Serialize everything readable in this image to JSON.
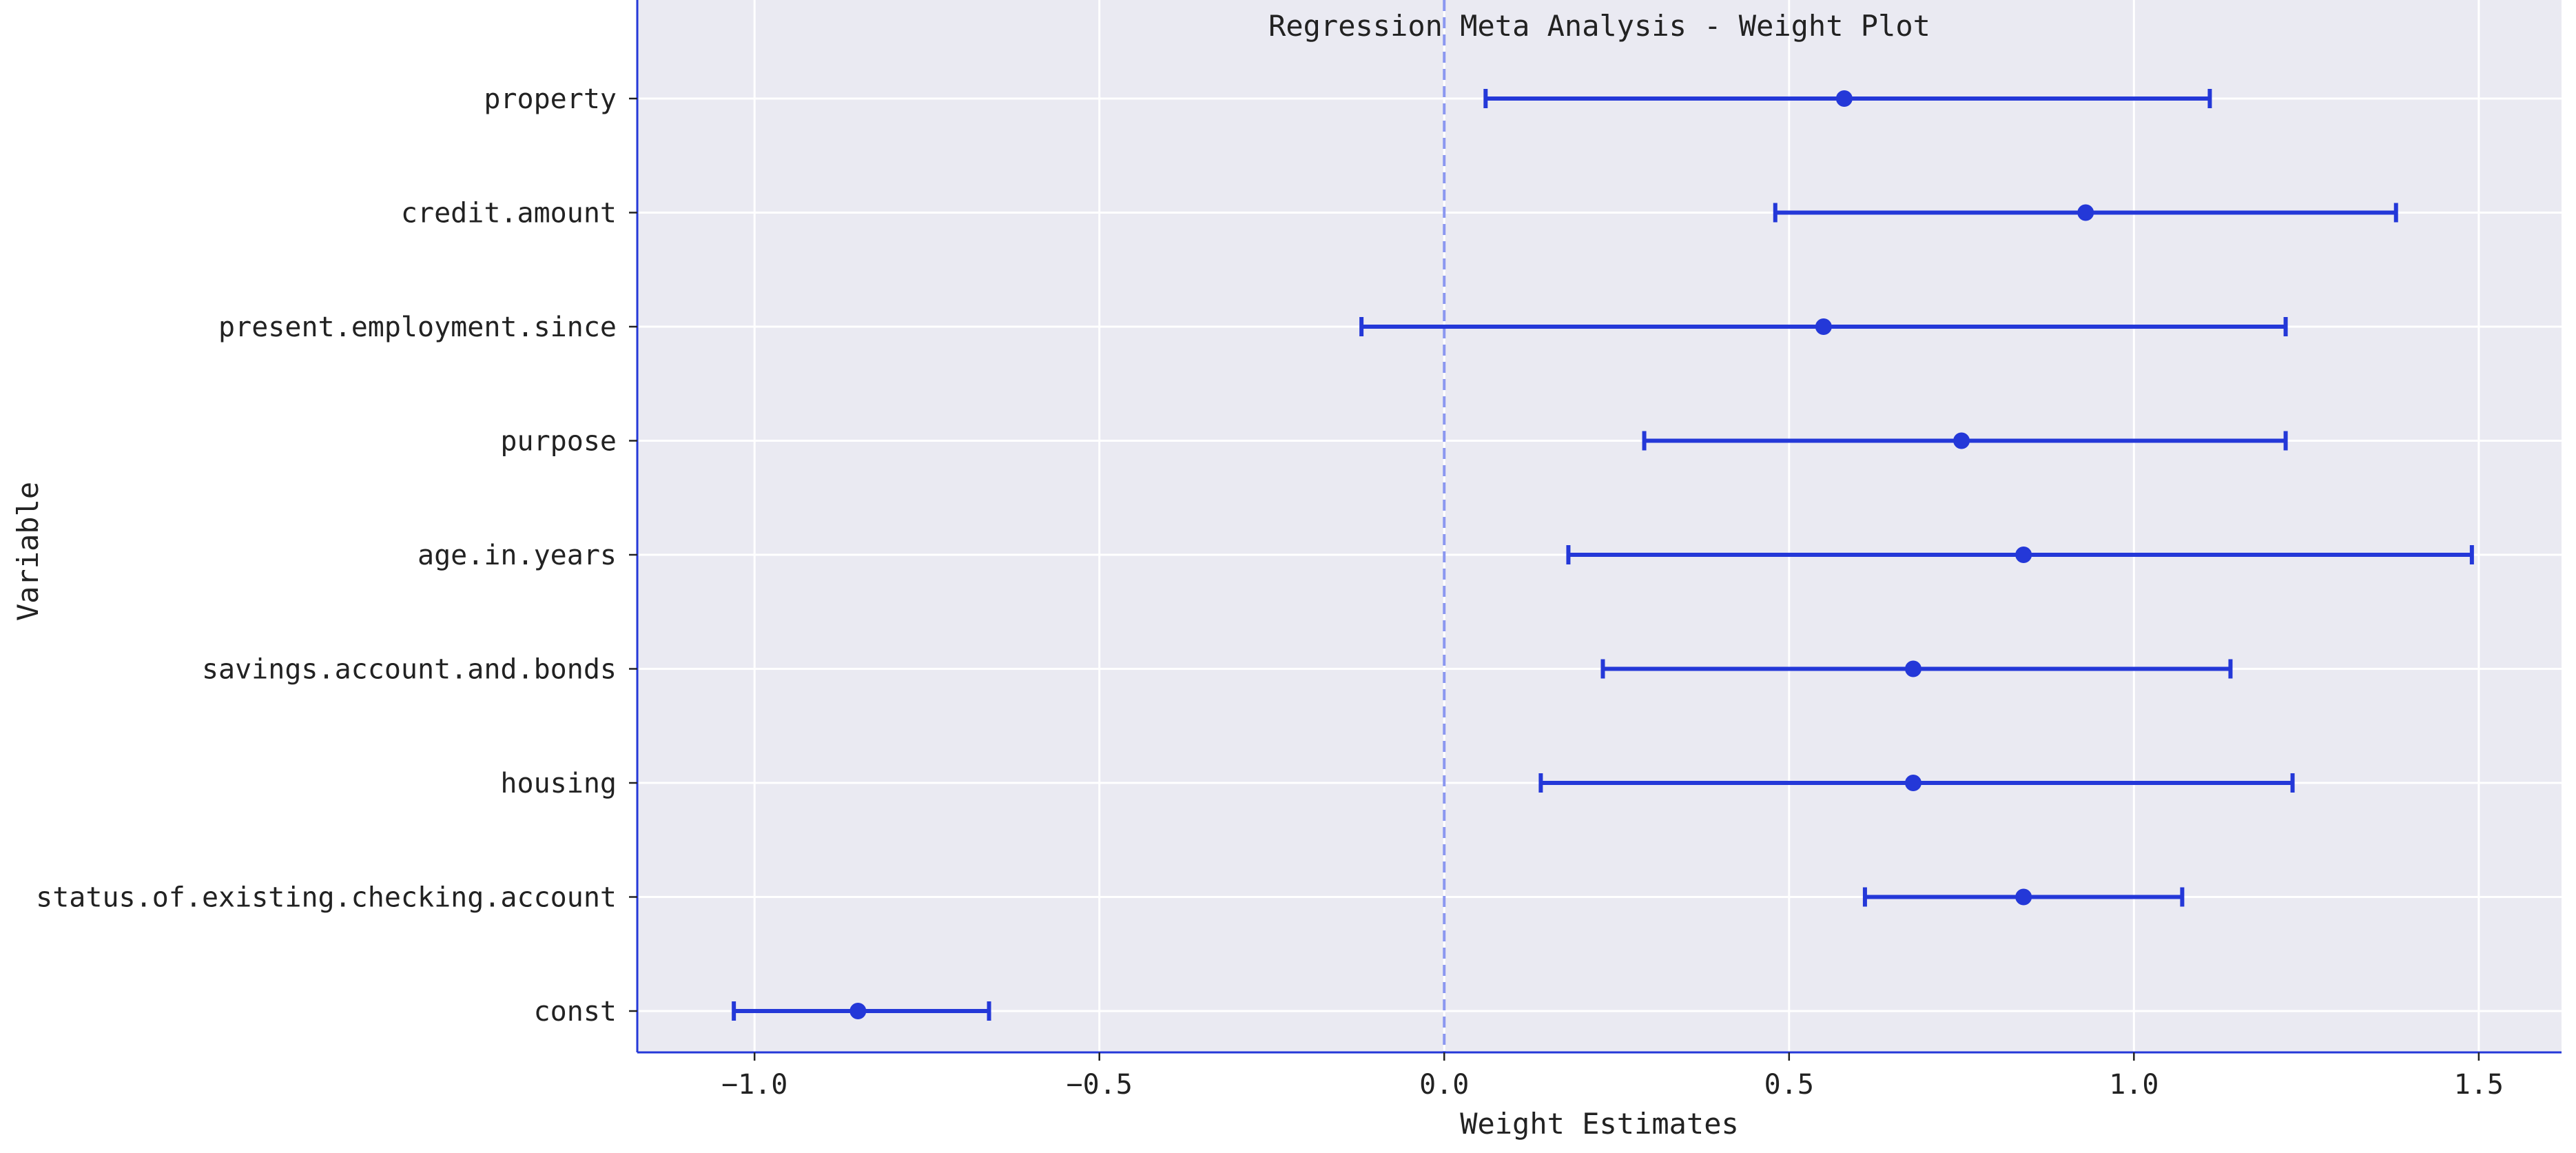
{
  "chart_data": {
    "type": "errorbar",
    "title": "Regression Meta Analysis - Weight Plot",
    "xlabel": "Weight Estimates",
    "ylabel": "Variable",
    "xlim": [
      -1.17,
      1.62
    ],
    "xticks": [
      -1.0,
      -0.5,
      0.0,
      0.5,
      1.0,
      1.5
    ],
    "xtick_labels": [
      "−1.0",
      "−0.5",
      "0.0",
      "0.5",
      "1.0",
      "1.5"
    ],
    "reference_line_x": 0.0,
    "grid": true,
    "categories": [
      "property",
      "credit.amount",
      "present.employment.since",
      "purpose",
      "age.in.years",
      "savings.account.and.bonds",
      "housing",
      "status.of.existing.checking.account",
      "const"
    ],
    "estimates": [
      0.58,
      0.93,
      0.55,
      0.75,
      0.84,
      0.68,
      0.68,
      0.84,
      -0.85
    ],
    "lower": [
      0.06,
      0.48,
      -0.12,
      0.29,
      0.18,
      0.23,
      0.14,
      0.61,
      -1.03
    ],
    "upper": [
      1.11,
      1.38,
      1.22,
      1.22,
      1.49,
      1.14,
      1.23,
      1.07,
      -0.66
    ],
    "colors": {
      "marker": "#2438d8",
      "reference_line": "#8b97f0",
      "plot_background": "#eaeaf2",
      "grid": "#ffffff",
      "spine": "#2438d8"
    }
  }
}
